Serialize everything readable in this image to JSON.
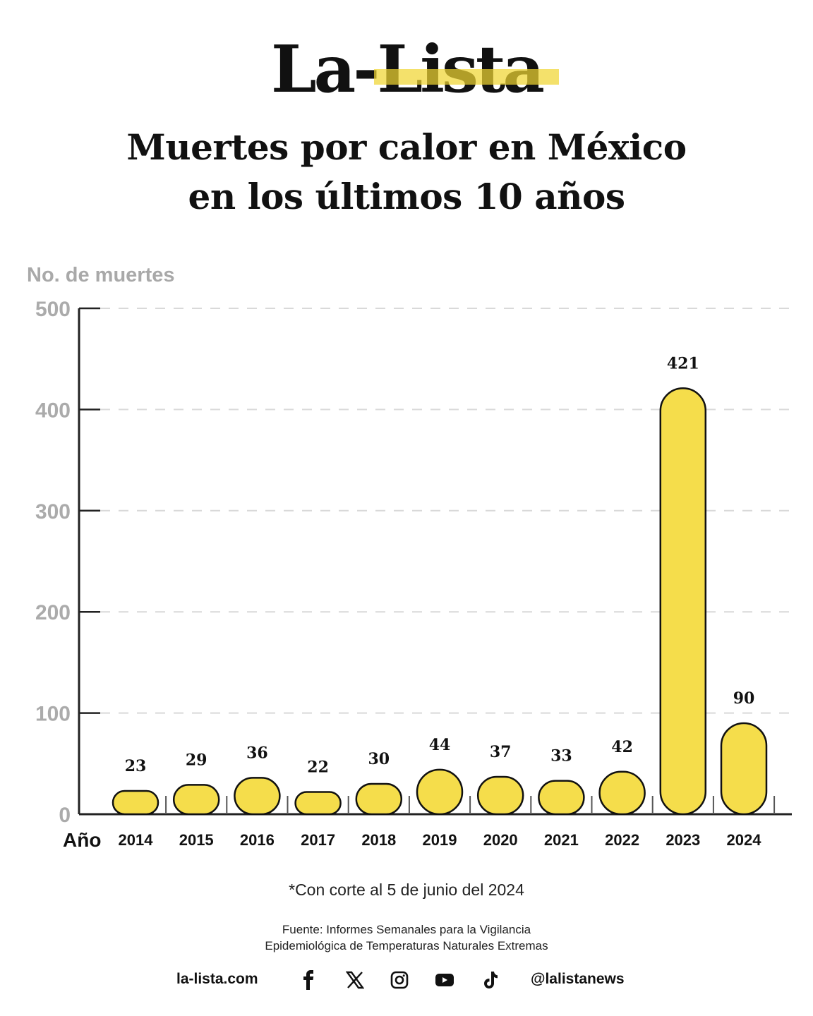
{
  "brand": {
    "logo": "La-Lista",
    "highlight_color": "#F0D632"
  },
  "header": {
    "title_line1": "Muertes por calor en México",
    "title_line2": "en los últimos 10 años"
  },
  "chart_data": {
    "type": "bar",
    "title": "Muertes por calor en México en los últimos 10 años",
    "xlabel": "Año",
    "ylabel": "No. de muertes",
    "categories": [
      "2014",
      "2015",
      "2016",
      "2017",
      "2018",
      "2019",
      "2020",
      "2021",
      "2022",
      "2023",
      "2024"
    ],
    "values": [
      23,
      29,
      36,
      22,
      30,
      44,
      37,
      33,
      42,
      421,
      90
    ],
    "ylim": [
      0,
      500
    ],
    "yticks": [
      0,
      100,
      200,
      300,
      400,
      500
    ],
    "grid": true,
    "grid_style": "dashed horizontal",
    "bar_color": "#F5DD4B",
    "bar_outline": "#111111",
    "annotations": [
      "*Con corte al 5 de junio del 2024"
    ]
  },
  "notes": {
    "cutoff": "*Con corte al 5 de junio del 2024",
    "source_line1": "Fuente: Informes Semanales para la Vigilancia",
    "source_line2": "Epidemiológica de Temperaturas Naturales Extremas"
  },
  "footer": {
    "website": "la-lista.com",
    "handle": "@lalistanews",
    "social_icons": [
      "facebook-icon",
      "x-icon",
      "instagram-icon",
      "youtube-icon",
      "tiktok-icon"
    ]
  }
}
